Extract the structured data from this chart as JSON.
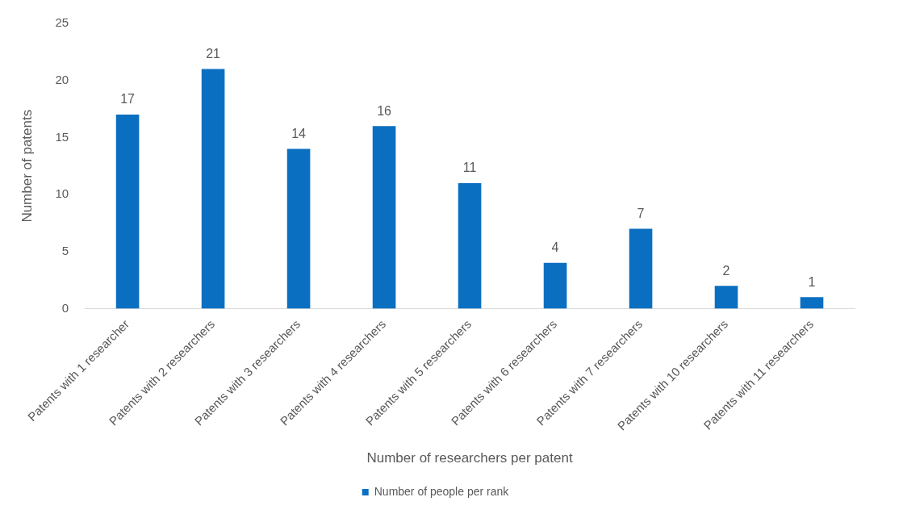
{
  "chart_data": {
    "type": "bar",
    "xlabel": "Number of researchers per patent",
    "ylabel": "Number of patents",
    "categories": [
      "Patents with 1 researcher",
      "Patents with 2 researchers",
      "Patents with 3 researchers",
      "Patents with 4 researchers",
      "Patents with 5 researchers",
      "Patents with 6 researchers",
      "Patents with 7 researchers",
      "Patents with 10 researchers",
      "Patents with 11 researchers"
    ],
    "series": [
      {
        "name": "Number of people per rank",
        "color": "#0b6fc1",
        "values": [
          17,
          21,
          14,
          16,
          11,
          4,
          7,
          2,
          1
        ]
      }
    ],
    "ylim": [
      0,
      25
    ],
    "yticks": [
      0,
      5,
      10,
      15,
      20,
      25
    ],
    "grid": false,
    "legend": "bottom",
    "data_labels": true
  }
}
